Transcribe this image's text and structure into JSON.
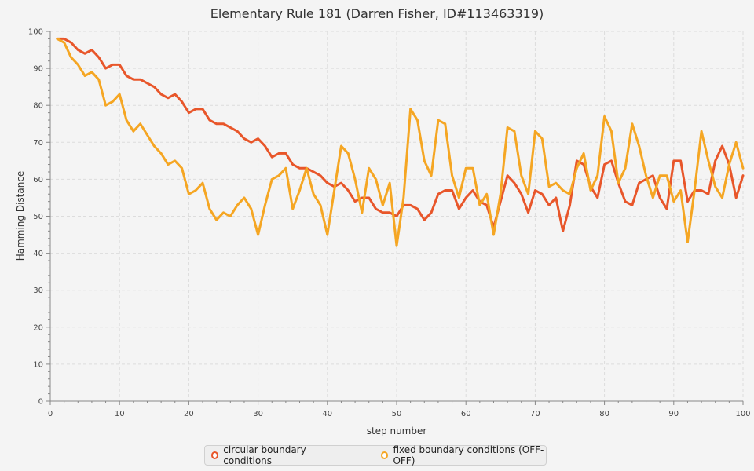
{
  "chart_data": {
    "type": "line",
    "title": "Elementary Rule 181 (Darren Fisher, ID#113463319)",
    "xlabel": "step number",
    "ylabel": "Hamming Distance",
    "xlim": [
      0,
      100
    ],
    "ylim": [
      0,
      100
    ],
    "x_ticks": [
      0,
      10,
      20,
      30,
      40,
      50,
      60,
      70,
      80,
      90,
      100
    ],
    "y_ticks": [
      0,
      10,
      20,
      30,
      40,
      50,
      60,
      70,
      80,
      90,
      100
    ],
    "grid": true,
    "legend_position": "bottom",
    "x_start": 1,
    "series": [
      {
        "name": "circular boundary conditions",
        "color": "#e8562a",
        "values": [
          98,
          98,
          97,
          95,
          94,
          95,
          93,
          90,
          91,
          91,
          88,
          87,
          87,
          86,
          85,
          83,
          82,
          83,
          81,
          78,
          79,
          79,
          76,
          75,
          75,
          74,
          73,
          71,
          70,
          71,
          69,
          66,
          67,
          67,
          64,
          63,
          63,
          62,
          61,
          59,
          58,
          59,
          57,
          54,
          55,
          55,
          52,
          51,
          51,
          50,
          53,
          53,
          52,
          49,
          51,
          56,
          57,
          57,
          52,
          55,
          57,
          54,
          53,
          47,
          54,
          61,
          59,
          56,
          51,
          57,
          56,
          53,
          55,
          46,
          53,
          65,
          64,
          58,
          55,
          64,
          65,
          59,
          54,
          53,
          59,
          60,
          61,
          55,
          52,
          65,
          65,
          54,
          57,
          57,
          56,
          65,
          69,
          64,
          55,
          61
        ]
      },
      {
        "name": "fixed boundary conditions (OFF-OFF)",
        "color": "#f5a623",
        "values": [
          98,
          97,
          93,
          91,
          88,
          89,
          87,
          80,
          81,
          83,
          76,
          73,
          75,
          72,
          69,
          67,
          64,
          65,
          63,
          56,
          57,
          59,
          52,
          49,
          51,
          50,
          53,
          55,
          52,
          45,
          53,
          60,
          61,
          63,
          52,
          57,
          63,
          56,
          53,
          45,
          57,
          69,
          67,
          60,
          51,
          63,
          60,
          53,
          59,
          42,
          55,
          79,
          76,
          65,
          61,
          76,
          75,
          61,
          55,
          63,
          63,
          53,
          56,
          45,
          56,
          74,
          73,
          61,
          56,
          73,
          71,
          58,
          59,
          57,
          56,
          63,
          67,
          57,
          61,
          77,
          73,
          59,
          63,
          75,
          69,
          61,
          55,
          61,
          61,
          54,
          57,
          43,
          57,
          73,
          65,
          58,
          55,
          64,
          70,
          63
        ]
      }
    ]
  }
}
